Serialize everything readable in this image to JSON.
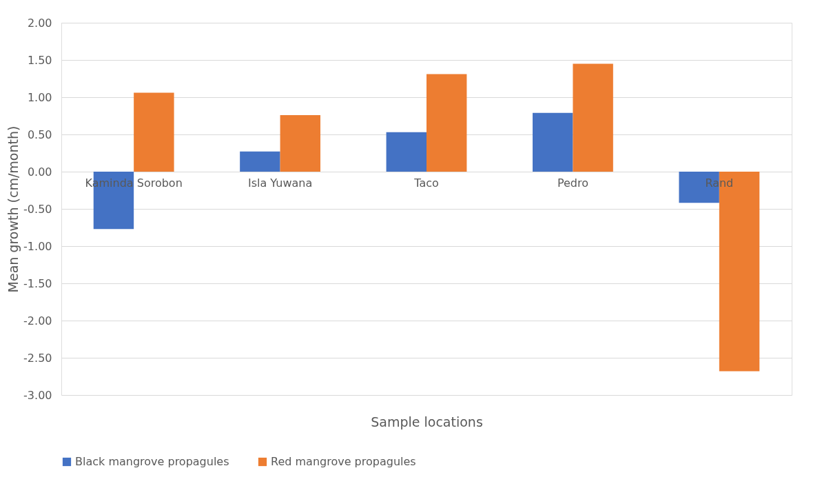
{
  "chart_data": {
    "type": "bar",
    "xlabel": "Sample locations",
    "ylabel": "Mean growth (cm/month)",
    "categories": [
      "Kaminda Sorobon",
      "Isla Yuwana",
      "Taco",
      "Pedro",
      "Rand"
    ],
    "series": [
      {
        "name": "Black mangrove propagules",
        "color": "#4472c4",
        "values": [
          -0.77,
          0.27,
          0.53,
          0.79,
          -0.42
        ]
      },
      {
        "name": "Red mangrove propagules",
        "color": "#ed7d31",
        "values": [
          1.06,
          0.76,
          1.31,
          1.45,
          -2.68
        ]
      }
    ],
    "ylim": [
      -3,
      2
    ],
    "yticks": [
      {
        "value": -3,
        "label": "-3.00"
      },
      {
        "value": -2.5,
        "label": "-2.50"
      },
      {
        "value": -2,
        "label": "-2.00"
      },
      {
        "value": -1.5,
        "label": "-1.50"
      },
      {
        "value": -1,
        "label": "-1.00"
      },
      {
        "value": -0.5,
        "label": "-0.50"
      },
      {
        "value": 0,
        "label": "0.00"
      },
      {
        "value": 0.5,
        "label": "0.50"
      },
      {
        "value": 1,
        "label": "1.00"
      },
      {
        "value": 1.5,
        "label": "1.50"
      },
      {
        "value": 2,
        "label": "2.00"
      }
    ],
    "grid": "y",
    "legend": "bottom"
  }
}
